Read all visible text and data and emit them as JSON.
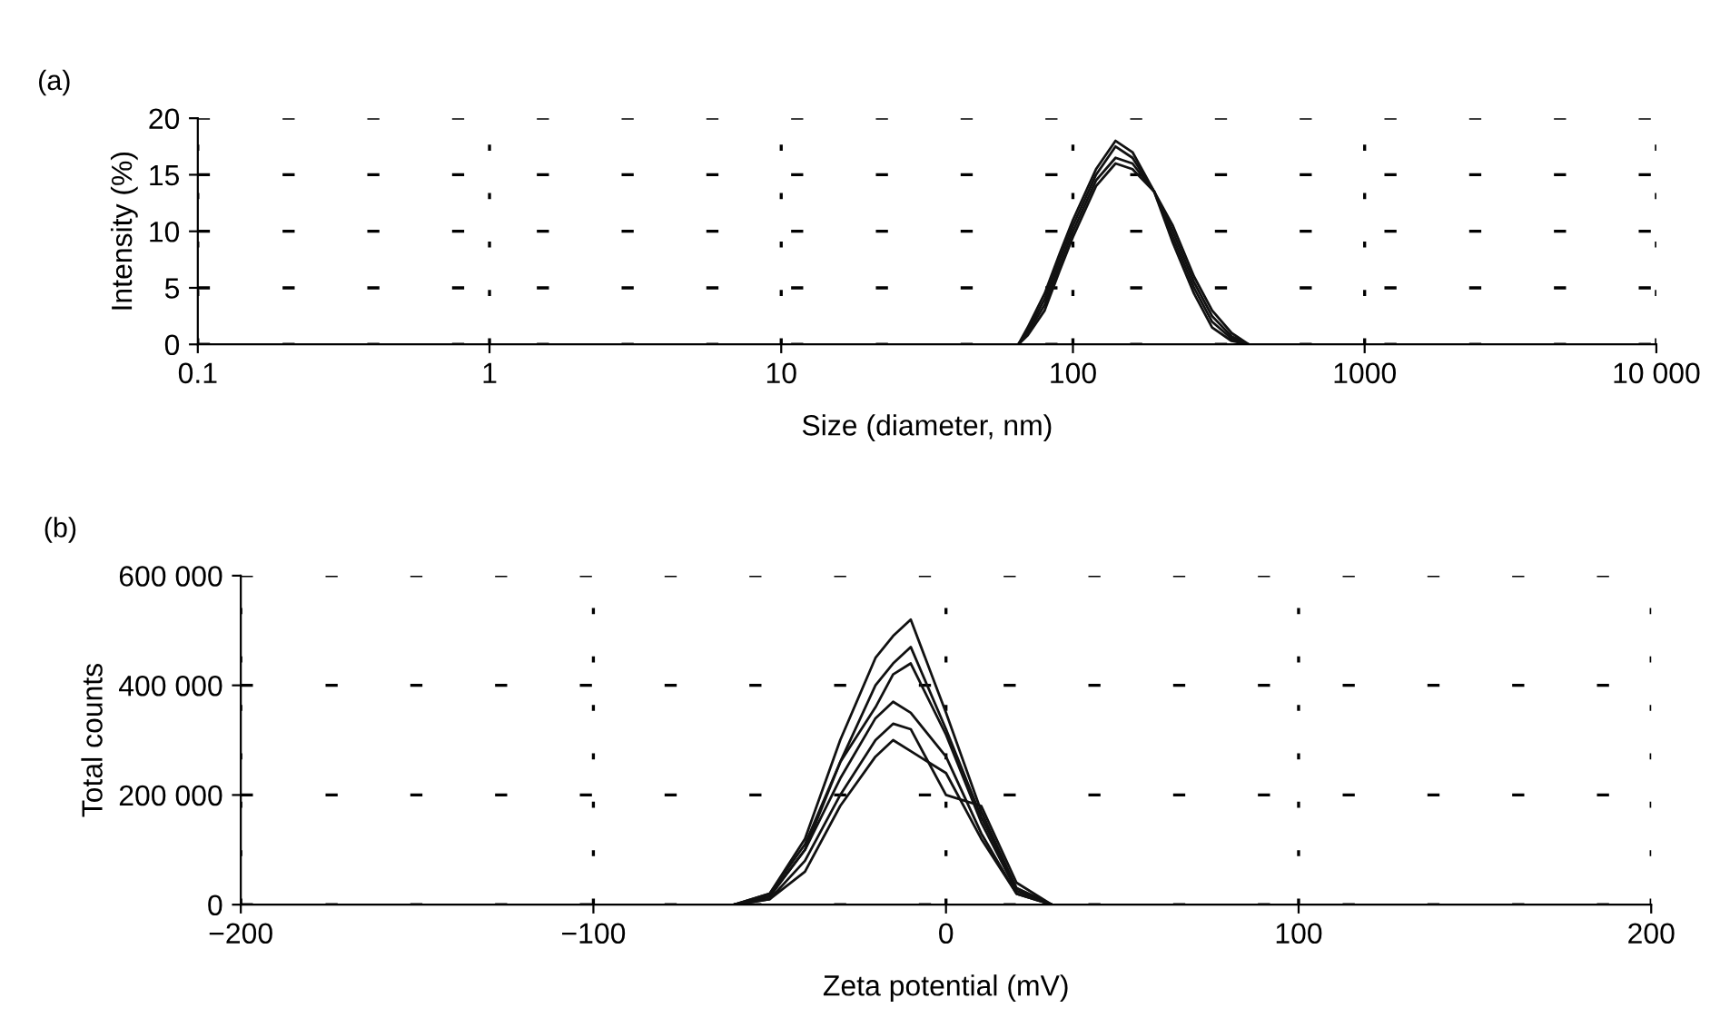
{
  "chart_data": [
    {
      "type": "line",
      "xlabel": "Size (diameter, nm)",
      "ylabel": "Intensity (%)",
      "annotations": [
        "(a)"
      ],
      "log": "x",
      "grid": true,
      "marker": "none",
      "line_style": "solid",
      "xlim": [
        0.1,
        10000
      ],
      "xticks": [
        0.1,
        1,
        10,
        100,
        1000,
        {
          "value": 10000,
          "label": "10 000"
        }
      ],
      "ylim": [
        0,
        20
      ],
      "yticks": [
        0,
        5,
        10,
        15,
        20
      ],
      "series": [
        {
          "color": "#111111",
          "x": [
            65,
            70,
            80,
            90,
            100,
            120,
            140,
            160,
            190,
            220,
            260,
            300,
            350,
            400
          ],
          "values": [
            0,
            1.5,
            4.5,
            8,
            11,
            15.5,
            18,
            17,
            13.5,
            9,
            4.5,
            1.5,
            0.3,
            0
          ]
        },
        {
          "color": "#111111",
          "x": [
            65,
            70,
            80,
            90,
            100,
            120,
            140,
            160,
            190,
            220,
            260,
            300,
            350,
            400
          ],
          "values": [
            0,
            1.2,
            4,
            7.5,
            10.5,
            15,
            17.5,
            16.5,
            13.5,
            9.5,
            5,
            2,
            0.5,
            0
          ]
        },
        {
          "color": "#111111",
          "x": [
            65,
            70,
            80,
            90,
            100,
            120,
            140,
            160,
            190,
            220,
            260,
            300,
            350,
            400
          ],
          "values": [
            0,
            1,
            3.5,
            7,
            10,
            14.5,
            16.5,
            16,
            13.5,
            10,
            5.5,
            2.5,
            0.7,
            0
          ]
        },
        {
          "color": "#111111",
          "x": [
            65,
            70,
            80,
            90,
            100,
            120,
            140,
            160,
            190,
            220,
            260,
            300,
            350,
            400
          ],
          "values": [
            0,
            0.8,
            3,
            6.5,
            9.5,
            14,
            16,
            15.5,
            13.5,
            10.5,
            6,
            3,
            1,
            0
          ]
        }
      ]
    },
    {
      "type": "line",
      "xlabel": "Zeta potential (mV)",
      "ylabel": "Total counts",
      "annotations": [
        "(b)"
      ],
      "grid": true,
      "marker": "none",
      "line_style": "solid",
      "xlim": [
        -200,
        200
      ],
      "xticks": [
        {
          "value": -200,
          "label": "−200"
        },
        {
          "value": -100,
          "label": "−100"
        },
        0,
        100,
        200
      ],
      "ylim": [
        0,
        600000
      ],
      "yticks": [
        0,
        {
          "value": 200000,
          "label": "200 000"
        },
        {
          "value": 400000,
          "label": "400 000"
        },
        {
          "value": 600000,
          "label": "600 000"
        }
      ],
      "series": [
        {
          "color": "#111111",
          "x": [
            -60,
            -50,
            -40,
            -30,
            -20,
            -15,
            -10,
            0,
            10,
            20,
            30
          ],
          "values": [
            0,
            20000,
            120000,
            300000,
            450000,
            490000,
            520000,
            350000,
            170000,
            30000,
            0
          ]
        },
        {
          "color": "#111111",
          "x": [
            -60,
            -50,
            -40,
            -30,
            -20,
            -15,
            -10,
            0,
            10,
            20,
            30
          ],
          "values": [
            0,
            15000,
            100000,
            260000,
            400000,
            440000,
            470000,
            320000,
            160000,
            30000,
            0
          ]
        },
        {
          "color": "#111111",
          "x": [
            -60,
            -50,
            -40,
            -30,
            -20,
            -15,
            -10,
            0,
            10,
            20,
            30
          ],
          "values": [
            0,
            20000,
            110000,
            260000,
            360000,
            420000,
            440000,
            310000,
            150000,
            25000,
            0
          ]
        },
        {
          "color": "#111111",
          "x": [
            -60,
            -50,
            -40,
            -30,
            -20,
            -15,
            -10,
            0,
            10,
            20,
            30
          ],
          "values": [
            0,
            15000,
            100000,
            230000,
            340000,
            370000,
            350000,
            270000,
            130000,
            20000,
            0
          ]
        },
        {
          "color": "#111111",
          "x": [
            -60,
            -50,
            -40,
            -30,
            -20,
            -15,
            -10,
            0,
            10,
            20,
            30
          ],
          "values": [
            0,
            10000,
            80000,
            200000,
            300000,
            330000,
            320000,
            200000,
            180000,
            40000,
            0
          ]
        },
        {
          "color": "#111111",
          "x": [
            -60,
            -50,
            -40,
            -30,
            -20,
            -15,
            -10,
            0,
            10,
            20,
            30
          ],
          "values": [
            0,
            10000,
            60000,
            180000,
            270000,
            300000,
            280000,
            240000,
            120000,
            20000,
            0
          ]
        }
      ]
    }
  ]
}
